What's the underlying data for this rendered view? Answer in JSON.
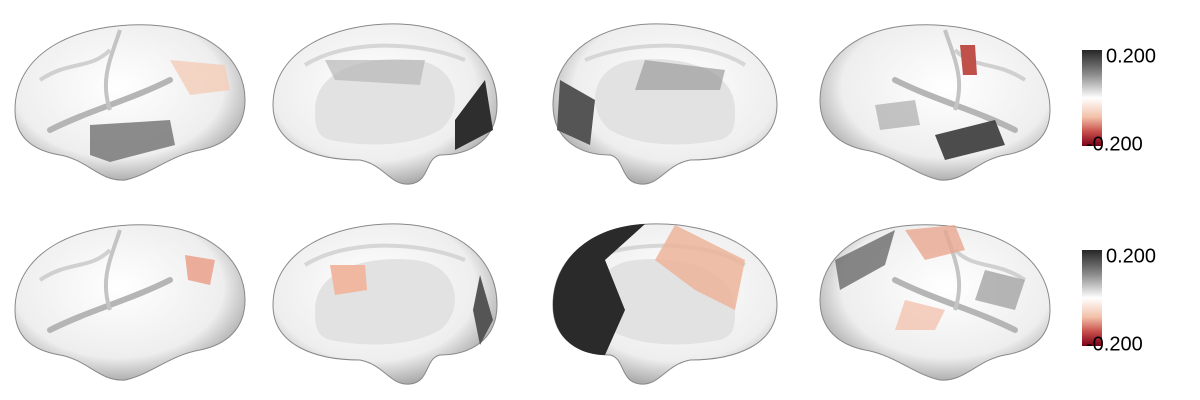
{
  "colorbars": [
    {
      "max_label": "0.200",
      "min_label": "-0.200"
    },
    {
      "max_label": "0.200",
      "min_label": "-0.200"
    }
  ]
}
